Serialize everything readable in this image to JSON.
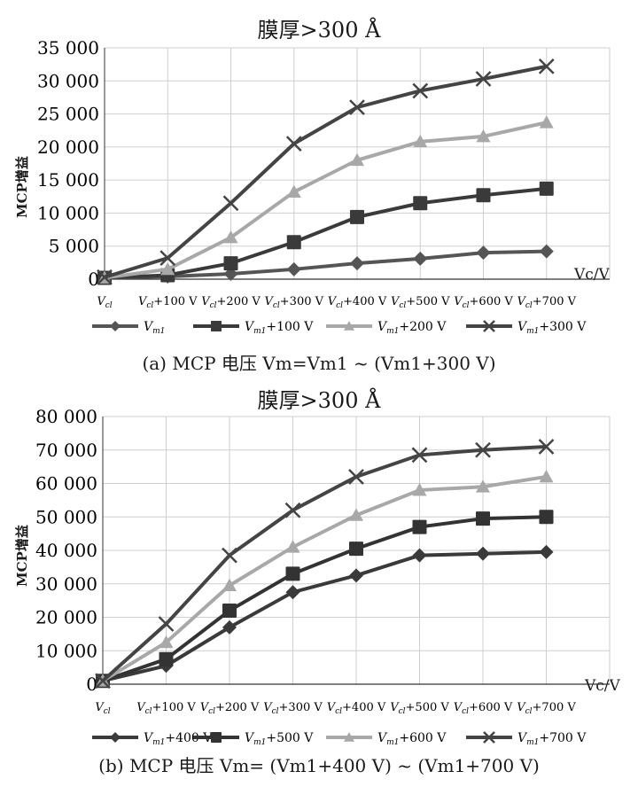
{
  "chart_data": [
    {
      "type": "line",
      "title": "膜厚>300 Å",
      "ylabel": "MCP增益",
      "xunit": "Vc/V",
      "caption": "(a) MCP 电压 Vm=Vm1 ~ (Vm1+300 V)",
      "categories": [
        "Vcl",
        "Vcl+100 V",
        "Vcl+200 V",
        "Vcl+300 V",
        "Vcl+400 V",
        "Vcl+500 V",
        "Vcl+600 V",
        "Vcl+700 V"
      ],
      "yticks": [
        "0",
        "5 000",
        "10 000",
        "15 000",
        "20 000",
        "25 000",
        "30 000",
        "35 000"
      ],
      "ylim": [
        0,
        35000
      ],
      "grid": true,
      "legend_position": "bottom",
      "series": [
        {
          "name": "Vm1",
          "marker": "diamond",
          "color": "#555555",
          "values": [
            200,
            400,
            800,
            1500,
            2400,
            3100,
            4000,
            4200
          ]
        },
        {
          "name": "Vm1+100 V",
          "marker": "square",
          "color": "#3a3a3a",
          "values": [
            200,
            600,
            2400,
            5600,
            9400,
            11500,
            12700,
            13700
          ]
        },
        {
          "name": "Vm1+200 V",
          "marker": "triangle",
          "color": "#a8a8a8",
          "values": [
            200,
            1500,
            6300,
            13200,
            18000,
            20800,
            21600,
            23700
          ]
        },
        {
          "name": "Vm1+300 V",
          "marker": "x",
          "color": "#444444",
          "values": [
            300,
            3200,
            11500,
            20500,
            26000,
            28500,
            30300,
            32200
          ]
        }
      ]
    },
    {
      "type": "line",
      "title": "膜厚>300 Å",
      "ylabel": "MCP增益",
      "xunit": "Vc/V",
      "caption": "(b) MCP 电压 Vm= (Vm1+400 V) ~ (Vm1+700 V)",
      "categories": [
        "Vcl",
        "Vcl+100 V",
        "Vcl+200 V",
        "Vcl+300 V",
        "Vcl+400 V",
        "Vcl+500 V",
        "Vcl+600 V",
        "Vcl+700 V"
      ],
      "yticks": [
        "0",
        "10 000",
        "20 000",
        "30 000",
        "40 000",
        "50 000",
        "60 000",
        "70 000",
        "80 000"
      ],
      "ylim": [
        0,
        80000
      ],
      "grid": true,
      "legend_position": "bottom",
      "series": [
        {
          "name": "Vm1+400 V",
          "marker": "diamond",
          "color": "#3a3a3a",
          "values": [
            1000,
            5500,
            17000,
            27500,
            32500,
            38500,
            39000,
            39500
          ]
        },
        {
          "name": "Vm1+500 V",
          "marker": "square",
          "color": "#333333",
          "values": [
            1000,
            7500,
            22000,
            33000,
            40500,
            47000,
            49500,
            50000
          ]
        },
        {
          "name": "Vm1+600 V",
          "marker": "triangle",
          "color": "#a8a8a8",
          "values": [
            1000,
            12500,
            29500,
            41000,
            50500,
            58000,
            59000,
            62000
          ]
        },
        {
          "name": "Vm1+700 V",
          "marker": "x",
          "color": "#444444",
          "values": [
            1000,
            18000,
            38500,
            52000,
            62000,
            68500,
            70000,
            71000
          ]
        }
      ]
    }
  ]
}
